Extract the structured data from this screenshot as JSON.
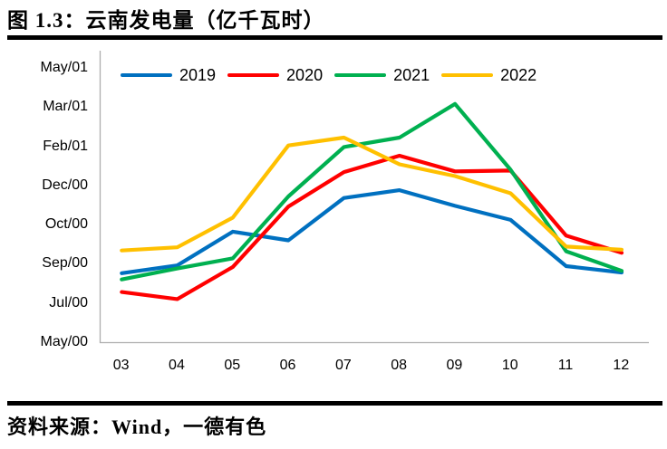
{
  "header": {
    "title": "图 1.3：云南发电量（亿千瓦时）"
  },
  "footer": {
    "source": "资料来源：Wind，一德有色"
  },
  "chart_data": {
    "type": "line",
    "title": "云南发电量（亿千瓦时）",
    "unit": "亿千瓦时",
    "categories": [
      "03",
      "04",
      "05",
      "06",
      "07",
      "08",
      "09",
      "10",
      "11",
      "12"
    ],
    "series": [
      {
        "name": "2019",
        "color": "#0070C0",
        "values": [
          238,
          248,
          291,
          280,
          334,
          344,
          324,
          306,
          247,
          239
        ]
      },
      {
        "name": "2020",
        "color": "#FF0000",
        "values": [
          214,
          205,
          246,
          323,
          367,
          388,
          368,
          369,
          286,
          264
        ]
      },
      {
        "name": "2021",
        "color": "#00B050",
        "values": [
          230,
          244,
          257,
          336,
          399,
          411,
          454,
          370,
          266,
          241
        ]
      },
      {
        "name": "2022",
        "color": "#FFC000",
        "values": [
          267,
          271,
          309,
          401,
          411,
          377,
          362,
          340,
          272,
          268
        ]
      }
    ],
    "y_axis": {
      "tick_labels": [
        "May/01",
        "Mar/01",
        "Feb/01",
        "Dec/00",
        "Oct/00",
        "Sep/00",
        "Jul/00",
        "May/00"
      ],
      "tick_values": [
        500,
        450,
        400,
        350,
        300,
        250,
        200,
        150
      ],
      "min": 150,
      "max": 500
    },
    "legend_position": "top",
    "grid": false,
    "axis_color": "#ADADAD"
  }
}
